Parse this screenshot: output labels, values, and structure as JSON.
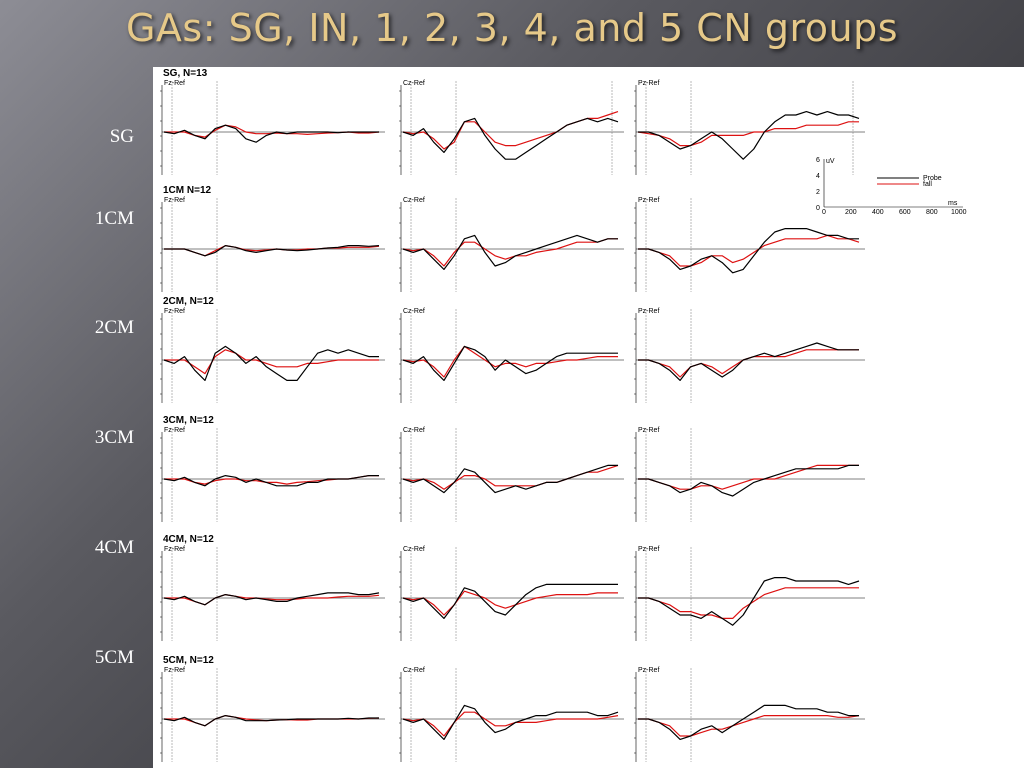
{
  "slide": {
    "title": "GAs: SG, IN, 1, 2, 3, 4, and 5 CN groups"
  },
  "colors": {
    "probe": "#000000",
    "fall": "#dd1111",
    "title": "#e6c989"
  },
  "row_labels": [
    "SG",
    "1CM",
    "2CM",
    "3CM",
    "4CM",
    "5CM"
  ],
  "legend": {
    "y_unit": "uV",
    "x_unit": "ms",
    "y_ticks": [
      "6",
      "4",
      "2",
      "0"
    ],
    "x_ticks": [
      "0",
      "200",
      "400",
      "600",
      "800",
      "1000"
    ],
    "series": [
      {
        "name": "Probe",
        "color": "#000000"
      },
      {
        "name": "fall",
        "color": "#dd1111"
      }
    ]
  },
  "chart_data": {
    "type": "line",
    "electrodes": [
      "Fz-Ref",
      "Cz-Ref",
      "Pz-Ref"
    ],
    "groups": [
      {
        "title": "SG, N=13",
        "panels": [
          {
            "probe": [
              0,
              -0.5,
              0.5,
              -1,
              -2,
              1,
              2,
              1,
              -2,
              -3,
              -1,
              0,
              -0.5,
              0,
              0,
              0,
              0,
              -0.2,
              0,
              0,
              0,
              0
            ],
            "fall": [
              0,
              0,
              0,
              -1,
              -1.5,
              0.5,
              2,
              1.5,
              0,
              -0.5,
              -0.5,
              -0.3,
              -0.5,
              -0.5,
              -0.7,
              -0.5,
              -0.3,
              -0.2,
              0,
              -0.3,
              -0.3,
              0
            ]
          },
          {
            "probe": [
              0,
              -1,
              1,
              -3,
              -6,
              -2,
              3,
              4,
              -1,
              -5,
              -8,
              -8,
              -6,
              -4,
              -2,
              0,
              2,
              3,
              4,
              3,
              4,
              3
            ],
            "fall": [
              0,
              -0.5,
              0,
              -2,
              -5,
              -3,
              3,
              3,
              0,
              -3,
              -4,
              -4,
              -3,
              -2,
              -1,
              0,
              2,
              3,
              4,
              4,
              5,
              6
            ]
          },
          {
            "probe": [
              0,
              0,
              -1,
              -3,
              -5,
              -4,
              -2,
              0,
              -2,
              -5,
              -8,
              -5,
              0,
              3,
              5,
              5,
              6,
              5,
              6,
              5,
              5,
              4
            ],
            "fall": [
              0,
              -0.5,
              -1,
              -2,
              -4,
              -4,
              -3,
              -1,
              -1,
              -1,
              -1,
              0,
              0,
              1,
              1,
              1,
              2,
              2,
              2,
              2,
              3,
              3
            ]
          }
        ]
      },
      {
        "title": "1CM N=12",
        "panels": [
          {
            "probe": [
              0,
              0,
              0,
              -1,
              -2,
              -1,
              1,
              0.5,
              -0.5,
              -1,
              -0.5,
              0,
              -0.3,
              -0.5,
              -0.3,
              0,
              0.3,
              0.5,
              1,
              1,
              0.8,
              1
            ],
            "fall": [
              0,
              0,
              0,
              -1,
              -2,
              -0.5,
              1,
              0.5,
              -0.3,
              -0.5,
              -0.3,
              0,
              -0.3,
              -0.3,
              0,
              0,
              0.3,
              0.3,
              0.5,
              0.5,
              0.5,
              0.8
            ]
          },
          {
            "probe": [
              0,
              -1,
              0,
              -3,
              -6,
              -2,
              3,
              4,
              -1,
              -5,
              -4,
              -2,
              -1,
              0,
              1,
              2,
              3,
              4,
              3,
              2,
              3,
              3
            ],
            "fall": [
              0,
              -0.5,
              0,
              -2,
              -5,
              -1,
              2,
              2,
              0,
              -2,
              -3,
              -2,
              -2,
              -1,
              -0.5,
              0,
              1,
              2,
              2,
              2,
              3,
              3
            ]
          },
          {
            "probe": [
              0,
              0,
              -1,
              -3,
              -6,
              -5,
              -3,
              -2,
              -4,
              -7,
              -6,
              -2,
              2,
              5,
              6,
              6,
              6,
              5,
              4,
              4,
              3,
              3
            ],
            "fall": [
              0,
              0,
              -1,
              -2,
              -5,
              -5,
              -4,
              -2,
              -2,
              -4,
              -3,
              -1,
              1,
              2,
              3,
              3,
              3,
              3,
              4,
              3,
              3,
              2
            ]
          }
        ]
      },
      {
        "title": "2CM, N=12",
        "panels": [
          {
            "probe": [
              0,
              -1,
              1,
              -3,
              -6,
              2,
              4,
              2,
              -1,
              1,
              -2,
              -4,
              -6,
              -6,
              -2,
              2,
              3,
              2,
              3,
              2,
              1,
              1
            ],
            "fall": [
              0,
              0,
              0,
              -2,
              -4,
              1,
              3,
              2,
              0,
              0,
              -1,
              -2,
              -2,
              -2,
              -1,
              -1,
              -0.5,
              0,
              0,
              0,
              0,
              0
            ]
          },
          {
            "probe": [
              0,
              -1,
              1,
              -3,
              -6,
              -1,
              4,
              3,
              1,
              -3,
              0,
              -2,
              -4,
              -3,
              -1,
              1,
              2,
              2,
              2,
              2,
              2,
              2
            ],
            "fall": [
              0,
              -0.5,
              0,
              -2,
              -5,
              0,
              4,
              2,
              0,
              -2,
              -1,
              -1,
              -2,
              -1,
              -1,
              -0.5,
              0,
              0,
              0.5,
              1,
              1,
              1
            ]
          },
          {
            "probe": [
              0,
              0,
              -1,
              -3,
              -6,
              -2,
              -1,
              -3,
              -5,
              -3,
              0,
              1,
              2,
              1,
              2,
              3,
              4,
              5,
              4,
              3,
              3,
              3
            ],
            "fall": [
              0,
              0,
              -1,
              -2,
              -5,
              -2,
              -1,
              -2,
              -4,
              -2,
              0,
              1,
              1,
              1,
              1,
              2,
              3,
              3,
              3,
              3,
              3,
              3
            ]
          }
        ]
      },
      {
        "title": "3CM, N=12",
        "panels": [
          {
            "probe": [
              0,
              -0.5,
              0.5,
              -1,
              -2,
              0,
              1,
              0.5,
              -1,
              0,
              -1,
              -2,
              -2,
              -2,
              -1,
              -1,
              0,
              0,
              0,
              0.5,
              1,
              1
            ],
            "fall": [
              0,
              0,
              0,
              -1,
              -1.5,
              -0.5,
              0,
              0,
              -0.5,
              -0.5,
              -1,
              -1,
              -1.5,
              -1,
              -0.8,
              -0.5,
              -0.3,
              0,
              0,
              0.5,
              1,
              1
            ]
          },
          {
            "probe": [
              0,
              -1,
              0,
              -2,
              -4,
              -1,
              3,
              2,
              -1,
              -4,
              -3,
              -2,
              -3,
              -2,
              -1,
              -1,
              0,
              1,
              2,
              3,
              4,
              4
            ],
            "fall": [
              0,
              -0.5,
              0,
              -1,
              -3,
              -1,
              1,
              1,
              0,
              -2,
              -2,
              -2,
              -2,
              -2,
              -1,
              -1,
              0,
              1,
              2,
              2,
              3,
              4
            ]
          },
          {
            "probe": [
              0,
              0,
              -1,
              -2,
              -4,
              -3,
              -1,
              -2,
              -4,
              -5,
              -3,
              -1,
              0,
              1,
              2,
              3,
              3,
              3,
              3,
              3,
              4,
              4
            ],
            "fall": [
              0,
              0,
              -1,
              -2,
              -3,
              -3,
              -2,
              -2,
              -3,
              -2,
              -1,
              0,
              0,
              0,
              1,
              2,
              3,
              4,
              4,
              4,
              4,
              4
            ]
          }
        ]
      },
      {
        "title": "4CM, N=12",
        "panels": [
          {
            "probe": [
              0,
              -0.5,
              0.5,
              -1,
              -2,
              0,
              1,
              0.5,
              -0.5,
              0,
              -0.5,
              -1,
              -1,
              0,
              0.5,
              1,
              1.5,
              1.5,
              1.5,
              1,
              1,
              1.5
            ],
            "fall": [
              0,
              0,
              0,
              -1,
              -2,
              0,
              1,
              0.5,
              0,
              0,
              -0.3,
              -0.5,
              -0.5,
              -0.3,
              0,
              0,
              0,
              0.3,
              0.5,
              0.5,
              0.5,
              0.8
            ]
          },
          {
            "probe": [
              0,
              -1,
              0,
              -3,
              -6,
              -2,
              3,
              2,
              -1,
              -4,
              -5,
              -2,
              1,
              3,
              4,
              4,
              4,
              4,
              4,
              4,
              4,
              4
            ],
            "fall": [
              0,
              -0.5,
              0,
              -2,
              -5,
              -2,
              2,
              1,
              0,
              -2,
              -3,
              -2,
              -1,
              0,
              0.5,
              1,
              1,
              1,
              1,
              1.5,
              1.5,
              1.5
            ]
          },
          {
            "probe": [
              0,
              0,
              -1,
              -3,
              -5,
              -5,
              -6,
              -4,
              -6,
              -8,
              -5,
              0,
              5,
              6,
              6,
              5,
              5,
              5,
              5,
              5,
              4,
              5
            ],
            "fall": [
              0,
              0,
              -1,
              -2,
              -4,
              -4,
              -5,
              -5,
              -6,
              -6,
              -3,
              -1,
              1,
              2,
              3,
              3,
              3,
              3,
              3,
              3,
              3,
              3
            ]
          }
        ]
      },
      {
        "title": "5CM, N=12",
        "panels": [
          {
            "probe": [
              0,
              -0.5,
              0.5,
              -1,
              -2,
              0,
              1,
              0.5,
              -0.5,
              -0.5,
              -0.5,
              -0.3,
              -0.2,
              0,
              0,
              0,
              0,
              0,
              0.2,
              0,
              0.3,
              0.3
            ],
            "fall": [
              0,
              0,
              0,
              -1,
              -2,
              0,
              1,
              0.5,
              0,
              -0.3,
              -0.5,
              -0.3,
              -0.2,
              -0.3,
              -0.3,
              0,
              0,
              0,
              0,
              0,
              0.2,
              0.3
            ]
          },
          {
            "probe": [
              0,
              -1,
              0,
              -3,
              -6,
              -1,
              4,
              3,
              -1,
              -4,
              -3,
              -1,
              0,
              1,
              1,
              2,
              2,
              2,
              2,
              1,
              1,
              2
            ],
            "fall": [
              0,
              -0.5,
              0,
              -2,
              -5,
              -1,
              2,
              2,
              0,
              -2,
              -2,
              -1,
              -1,
              -1,
              -0.5,
              0,
              0,
              0,
              0,
              0,
              0.5,
              1
            ]
          },
          {
            "probe": [
              0,
              0,
              -1,
              -3,
              -6,
              -5,
              -3,
              -2,
              -4,
              -2,
              0,
              2,
              4,
              4,
              4,
              3,
              3,
              3,
              2,
              2,
              1,
              1
            ],
            "fall": [
              0,
              0,
              -1,
              -2,
              -5,
              -5,
              -4,
              -3,
              -3,
              -2,
              -1,
              0,
              1,
              1,
              1,
              1,
              1,
              1,
              1,
              0.5,
              0.5,
              1
            ]
          }
        ]
      }
    ]
  }
}
